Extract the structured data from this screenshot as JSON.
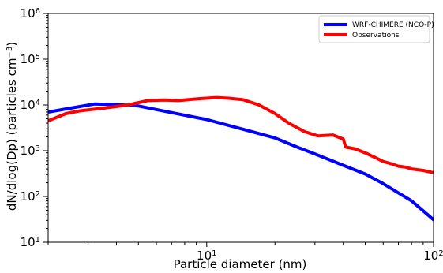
{
  "chart_data": {
    "type": "line",
    "xlabel": "Particle diameter (nm)",
    "ylabel_main": "dN/dlog(Dp) (particles cm",
    "ylabel_sup": "−3",
    "ylabel_close": ")",
    "x_scale": "log",
    "y_scale": "log",
    "xlim": [
      2,
      100
    ],
    "ylim": [
      10,
      1000000
    ],
    "grid": false,
    "legend_position": "top-right",
    "x_ticks": [
      {
        "value": 10,
        "base": "10",
        "exp": "1"
      },
      {
        "value": 100,
        "base": "10",
        "exp": "2"
      }
    ],
    "y_ticks": [
      {
        "value": 10,
        "base": "10",
        "exp": "1"
      },
      {
        "value": 100,
        "base": "10",
        "exp": "2"
      },
      {
        "value": 1000,
        "base": "10",
        "exp": "3"
      },
      {
        "value": 10000,
        "base": "10",
        "exp": "4"
      },
      {
        "value": 100000,
        "base": "10",
        "exp": "5"
      },
      {
        "value": 1000000,
        "base": "10",
        "exp": "6"
      }
    ],
    "series": [
      {
        "name": "WRF-CHIMERE (NCO-P)",
        "color": "#0000ff",
        "x": [
          2,
          2.5,
          3.2,
          4,
          5,
          7,
          10,
          15,
          20,
          25,
          30,
          40,
          50,
          60,
          80,
          100
        ],
        "y": [
          7000,
          8500,
          10500,
          10200,
          9500,
          6800,
          4800,
          2800,
          1900,
          1200,
          850,
          480,
          310,
          190,
          80,
          31
        ]
      },
      {
        "name": "Observations",
        "color": "#ff0000",
        "x": [
          2,
          2.4,
          2.8,
          3.5,
          4.5,
          5.5,
          6.5,
          7.5,
          9,
          11,
          12.5,
          14.5,
          17,
          20,
          23,
          27,
          31,
          36,
          40,
          41,
          45,
          50,
          55,
          60,
          65,
          70,
          75,
          80,
          90,
          100
        ],
        "y": [
          4500,
          6500,
          7500,
          8500,
          10000,
          12500,
          12800,
          12500,
          13500,
          14500,
          14000,
          13000,
          10000,
          6500,
          4000,
          2600,
          2100,
          2200,
          1800,
          1200,
          1100,
          900,
          720,
          580,
          520,
          460,
          440,
          400,
          370,
          330
        ]
      }
    ]
  }
}
